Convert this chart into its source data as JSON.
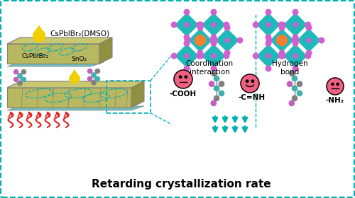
{
  "bg_color": "#ffffff",
  "border_color": "#00b0b0",
  "title_text": "Retarding crystallization rate",
  "title_fontsize": 11,
  "label_csplbibr2_dmso": "CsPbIBr₂(DMSO)",
  "label_csplbibr2": "CsPbIBr₂",
  "label_sno2": "SnO₂",
  "label_coord": "Coordination\ninteraction",
  "label_hbond": "Hydrogen\nbond",
  "label_cooh": "-COOH",
  "label_cnh": "-C=NH",
  "label_nh2": "-NH₂",
  "teal": "#00b0b0",
  "pink": "#f06080",
  "orange": "#f08030",
  "yellow": "#f0d000",
  "red": "#e02020",
  "purple": "#c060c0",
  "gray": "#808080",
  "olive": "#a0a060",
  "white": "#ffffff",
  "black": "#000000",
  "light_teal": "#40c0c0"
}
